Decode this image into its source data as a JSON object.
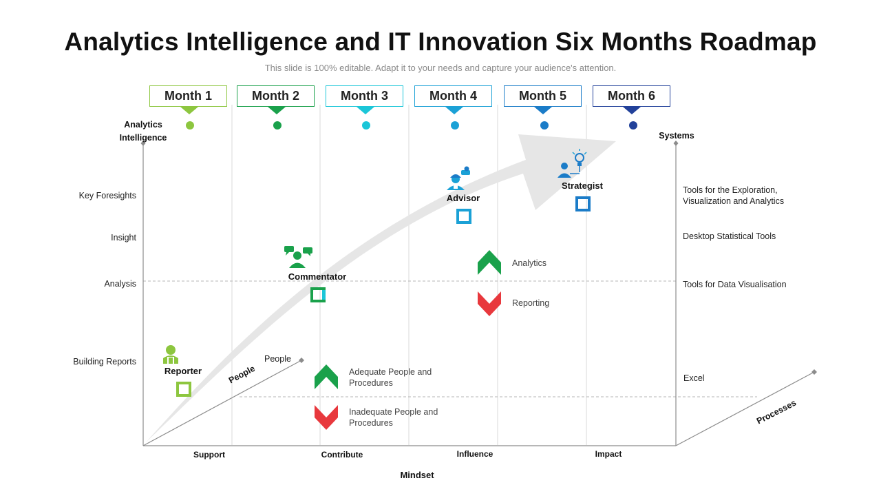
{
  "title": "Analytics Intelligence and IT Innovation Six Months Roadmap",
  "subtitle": "This slide is 100% editable. Adapt it to your needs and capture your audience's attention.",
  "months": [
    {
      "label": "Month 1",
      "color": "#8dc63f"
    },
    {
      "label": "Month 2",
      "color": "#1aa14b"
    },
    {
      "label": "Month 3",
      "color": "#1bc6d8"
    },
    {
      "label": "Month 4",
      "color": "#1ba1d6"
    },
    {
      "label": "Month 5",
      "color": "#1b7cc8"
    },
    {
      "label": "Month 6",
      "color": "#22419a"
    }
  ],
  "left_axis": {
    "title_line1": "Analytics",
    "title_line2": "Intelligence",
    "levels": [
      "Key Foresights",
      "Insight",
      "Analysis",
      "Building Reports"
    ]
  },
  "right_axis": {
    "title": "Systems",
    "items": [
      {
        "line1": "Tools for the Exploration,",
        "line2": "Visualization and Analytics"
      },
      {
        "line1": "Desktop Statistical Tools",
        "line2": ""
      },
      {
        "line1": "Tools for Data Visualisation",
        "line2": ""
      },
      {
        "line1": "Excel",
        "line2": ""
      }
    ]
  },
  "roles": [
    {
      "name": "Reporter",
      "icon": "reporter-icon",
      "color": "#8dc63f"
    },
    {
      "name": "Commentator",
      "icon": "commentator-icon",
      "color": "#1aa14b"
    },
    {
      "name": "Advisor",
      "icon": "advisor-icon",
      "color": "#1ba1d6"
    },
    {
      "name": "Strategist",
      "icon": "strategist-icon",
      "color": "#1b7cc8"
    }
  ],
  "legend": {
    "analytics": "Analytics",
    "reporting": "Reporting",
    "adequate_line1": "Adequate People and",
    "adequate_line2": "Procedures",
    "inadequate_line1": "Inadequate People and",
    "inadequate_line2": "Procedures",
    "up_color": "#1aa14b",
    "down_color": "#e8383d"
  },
  "bottom_axis": {
    "title": "Mindset",
    "labels": [
      "Support",
      "Contribute",
      "Influence",
      "Impact"
    ]
  },
  "people_axis": {
    "label": "People",
    "top_label": "People"
  },
  "processes_axis": {
    "label": "Processes"
  }
}
